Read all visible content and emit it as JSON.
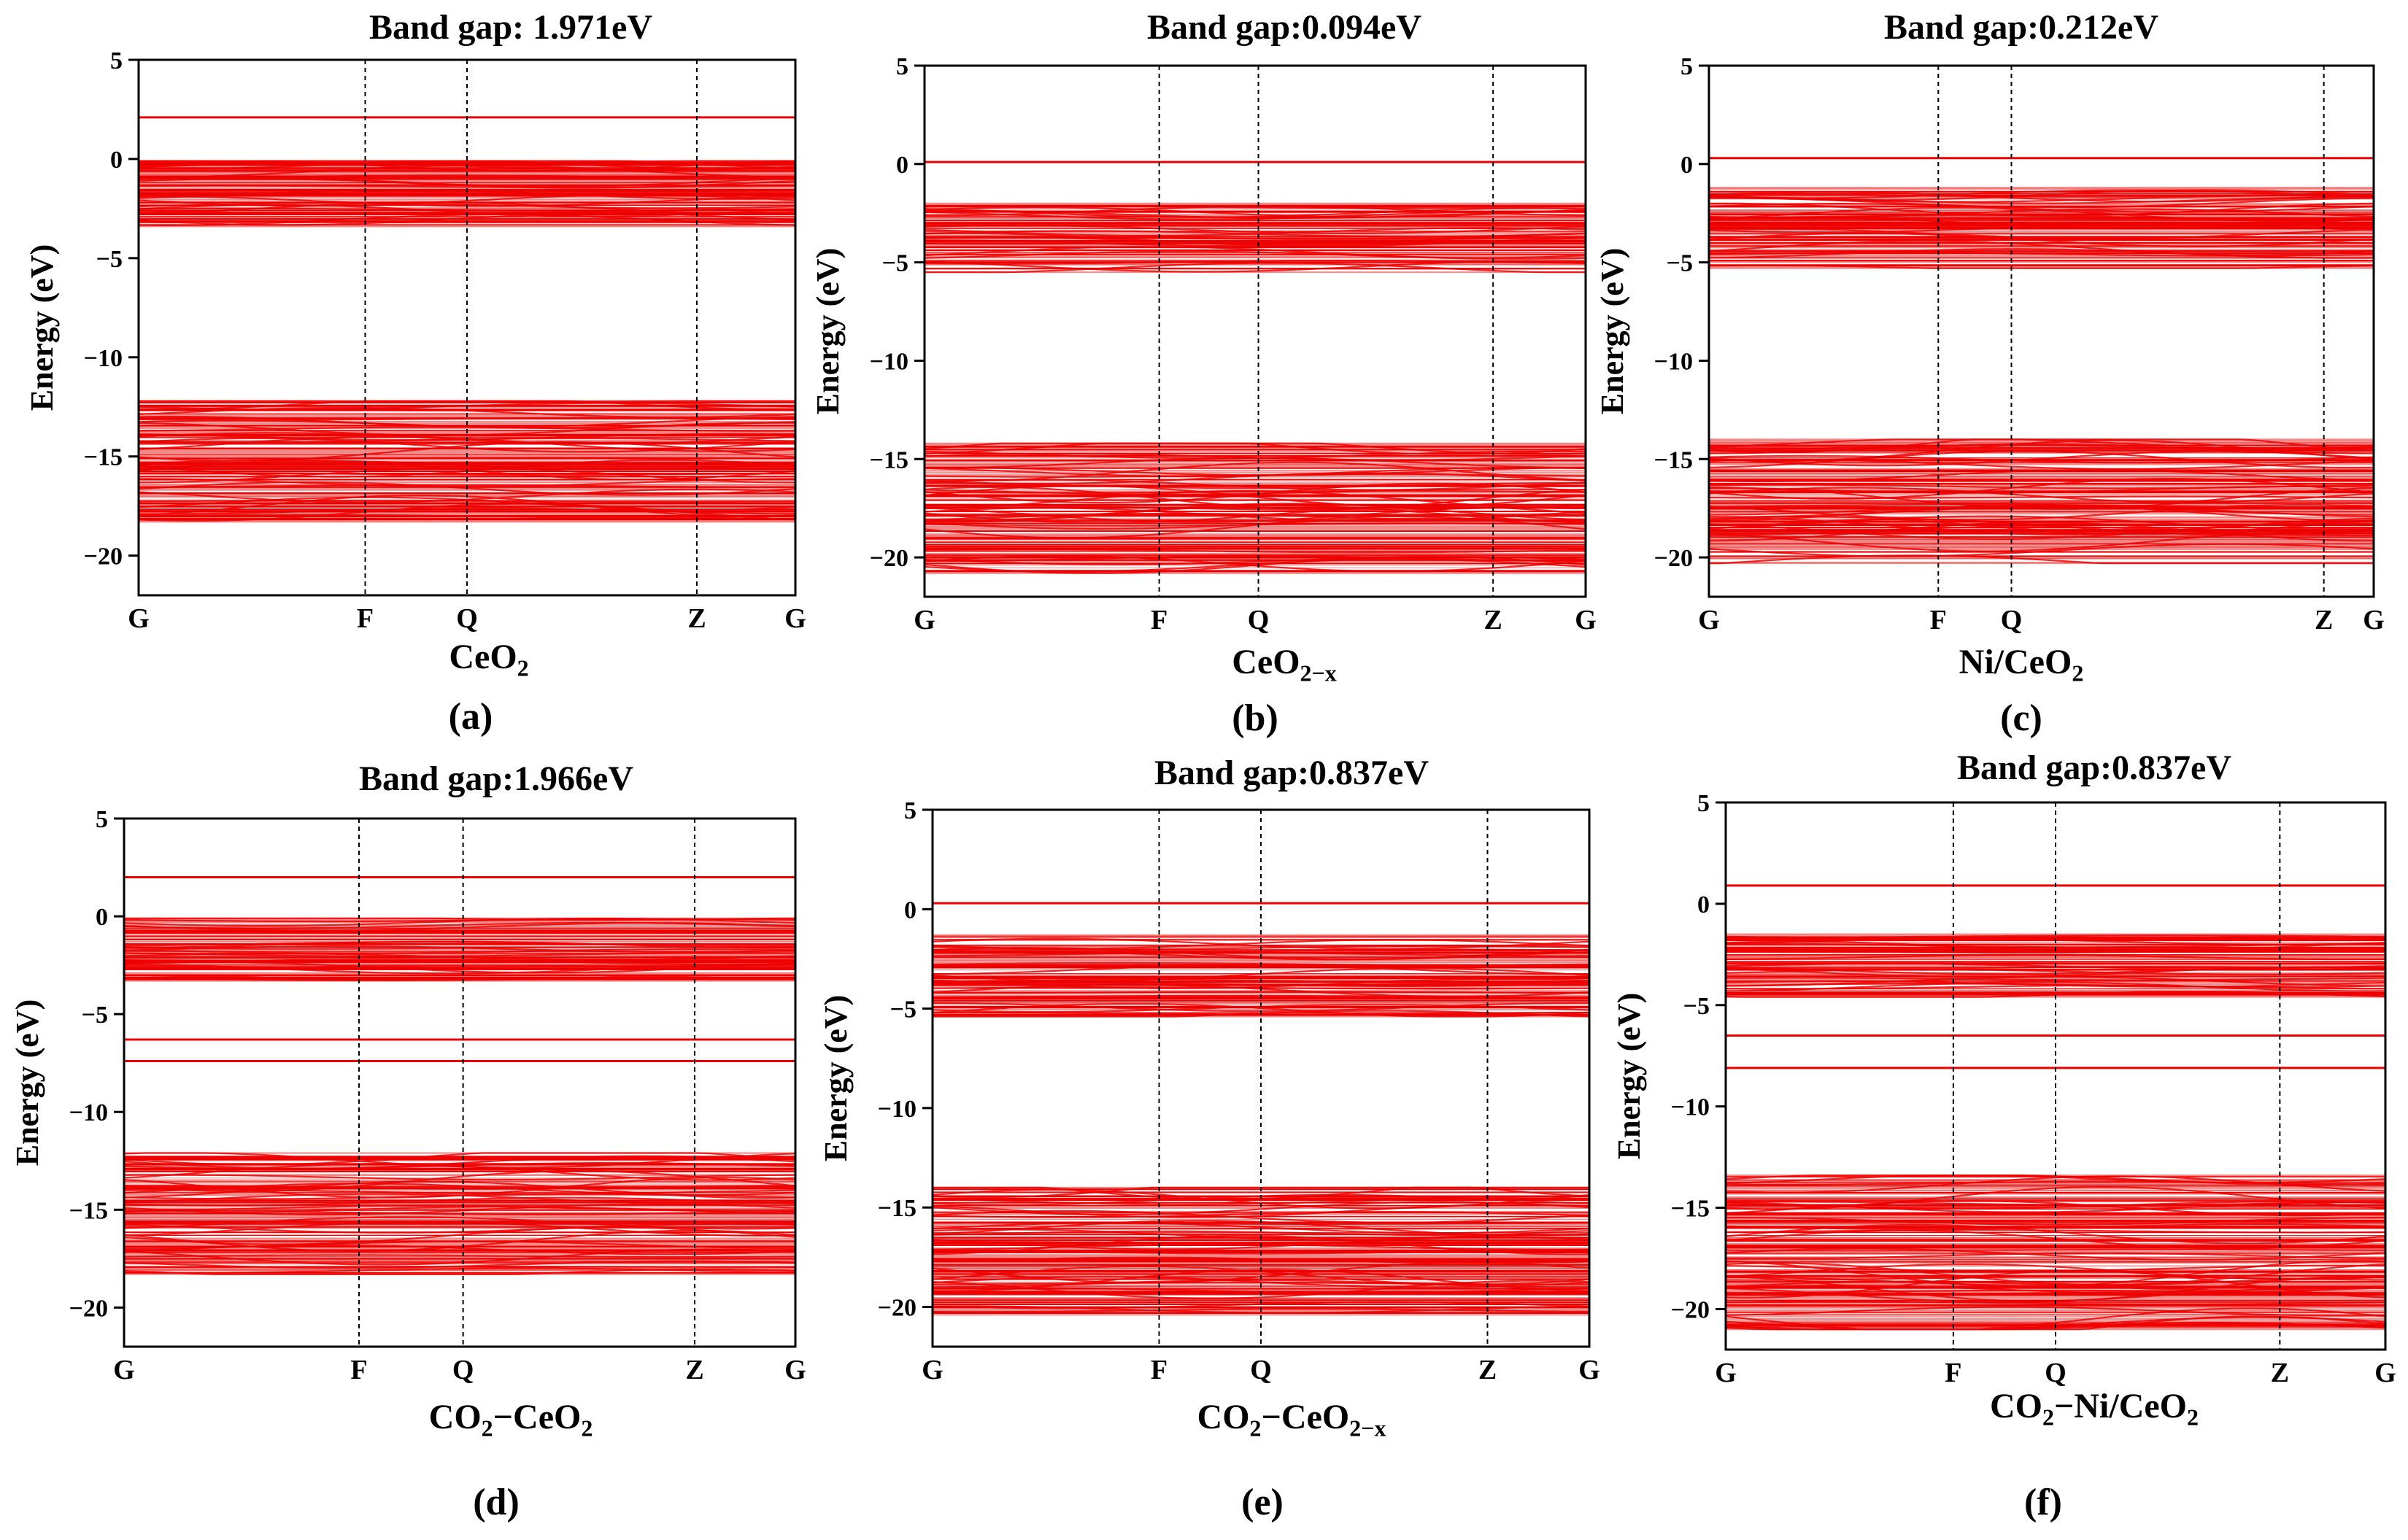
{
  "colors": {
    "band": "#ee0000",
    "band_faint": "#f28a8a",
    "axis": "#000000",
    "kline": "#000000"
  },
  "chart_data": [
    {
      "type": "line",
      "panel_label": "(a)",
      "title": "Band gap:  1.971eV",
      "material": {
        "main": "CeO",
        "sub": "2",
        "tail": "",
        "sub2": ""
      },
      "ylabel": "Energy (eV)",
      "ylim": [
        -22,
        5
      ],
      "yticks": [
        5,
        0,
        -5,
        -10,
        -15,
        -20
      ],
      "kpoints": [
        "G",
        "F",
        "Q",
        "Z",
        "G"
      ],
      "kpos": [
        0,
        0.345,
        0.5,
        0.85,
        1
      ],
      "bands": {
        "isolated": [
          2.1
        ],
        "groups": [
          [
            -3.4,
            -0.1
          ],
          [
            -18.3,
            -12.2
          ]
        ]
      },
      "band_gap_eV": 1.971
    },
    {
      "type": "line",
      "panel_label": "(b)",
      "title": "Band gap:0.094eV",
      "material": {
        "main": "CeO",
        "sub": "2−x",
        "tail": "",
        "sub2": ""
      },
      "ylabel": "Energy (eV)",
      "ylim": [
        -22,
        5
      ],
      "yticks": [
        5,
        0,
        -5,
        -10,
        -15,
        -20
      ],
      "kpoints": [
        "G",
        "F",
        "Q",
        "Z",
        "G"
      ],
      "kpos": [
        0,
        0.355,
        0.505,
        0.86,
        1
      ],
      "bands": {
        "isolated": [
          0.1
        ],
        "groups": [
          [
            -5.5,
            -2.0
          ],
          [
            -20.8,
            -14.2
          ]
        ]
      },
      "band_gap_eV": 0.094
    },
    {
      "type": "line",
      "panel_label": "(c)",
      "title": "Band gap:0.212eV",
      "material": {
        "main": "Ni/CeO",
        "sub": "2",
        "tail": "",
        "sub2": ""
      },
      "ylabel": "Energy (eV)",
      "ylim": [
        -22,
        5
      ],
      "yticks": [
        5,
        0,
        -5,
        -10,
        -15,
        -20
      ],
      "kpoints": [
        "G",
        "F",
        "Q",
        "Z",
        "G"
      ],
      "kpos": [
        0,
        0.345,
        0.455,
        0.925,
        1
      ],
      "bands": {
        "isolated": [
          0.3
        ],
        "groups": [
          [
            -5.3,
            -1.2
          ],
          [
            -20.3,
            -14.0
          ]
        ]
      },
      "band_gap_eV": 0.212
    },
    {
      "type": "line",
      "panel_label": "(d)",
      "title": "Band gap:1.966eV",
      "material": {
        "main": "CO",
        "sub": "2",
        "tail": "−CeO",
        "sub2": "2"
      },
      "ylabel": "Energy (eV)",
      "ylim": [
        -22,
        5
      ],
      "yticks": [
        5,
        0,
        -5,
        -10,
        -15,
        -20
      ],
      "kpoints": [
        "G",
        "F",
        "Q",
        "Z",
        "G"
      ],
      "kpos": [
        0,
        0.35,
        0.505,
        0.85,
        1
      ],
      "bands": {
        "isolated": [
          2.0,
          -6.3,
          -7.4
        ],
        "groups": [
          [
            -3.3,
            -0.1
          ],
          [
            -18.3,
            -12.1
          ]
        ]
      },
      "band_gap_eV": 1.966
    },
    {
      "type": "line",
      "panel_label": "(e)",
      "title": "Band gap:0.837eV",
      "material": {
        "main": "CO",
        "sub": "2",
        "tail": "−CeO",
        "sub2": "2−x"
      },
      "ylabel": "Energy (eV)",
      "ylim": [
        -22,
        5
      ],
      "yticks": [
        5,
        0,
        -5,
        -10,
        -15,
        -20
      ],
      "kpoints": [
        "G",
        "F",
        "Q",
        "Z",
        "G"
      ],
      "kpos": [
        0,
        0.345,
        0.5,
        0.845,
        1
      ],
      "bands": {
        "isolated": [
          0.3
        ],
        "groups": [
          [
            -5.4,
            -1.3
          ],
          [
            -20.4,
            -14.0
          ]
        ]
      },
      "band_gap_eV": 0.837
    },
    {
      "type": "line",
      "panel_label": "(f)",
      "title": "Band gap:0.837eV",
      "material": {
        "main": "CO",
        "sub": "2",
        "tail": "−Ni/CeO",
        "sub2": "2"
      },
      "ylabel": "Energy (eV)",
      "ylim": [
        -22,
        5
      ],
      "yticks": [
        5,
        0,
        -5,
        -10,
        -15,
        -20
      ],
      "kpoints": [
        "G",
        "F",
        "Q",
        "Z",
        "G"
      ],
      "kpos": [
        0,
        0.345,
        0.5,
        0.84,
        1
      ],
      "bands": {
        "isolated": [
          0.9,
          -6.5,
          -8.1
        ],
        "groups": [
          [
            -4.6,
            -1.5
          ],
          [
            -21.0,
            -13.4
          ]
        ]
      },
      "band_gap_eV": 0.837
    }
  ]
}
